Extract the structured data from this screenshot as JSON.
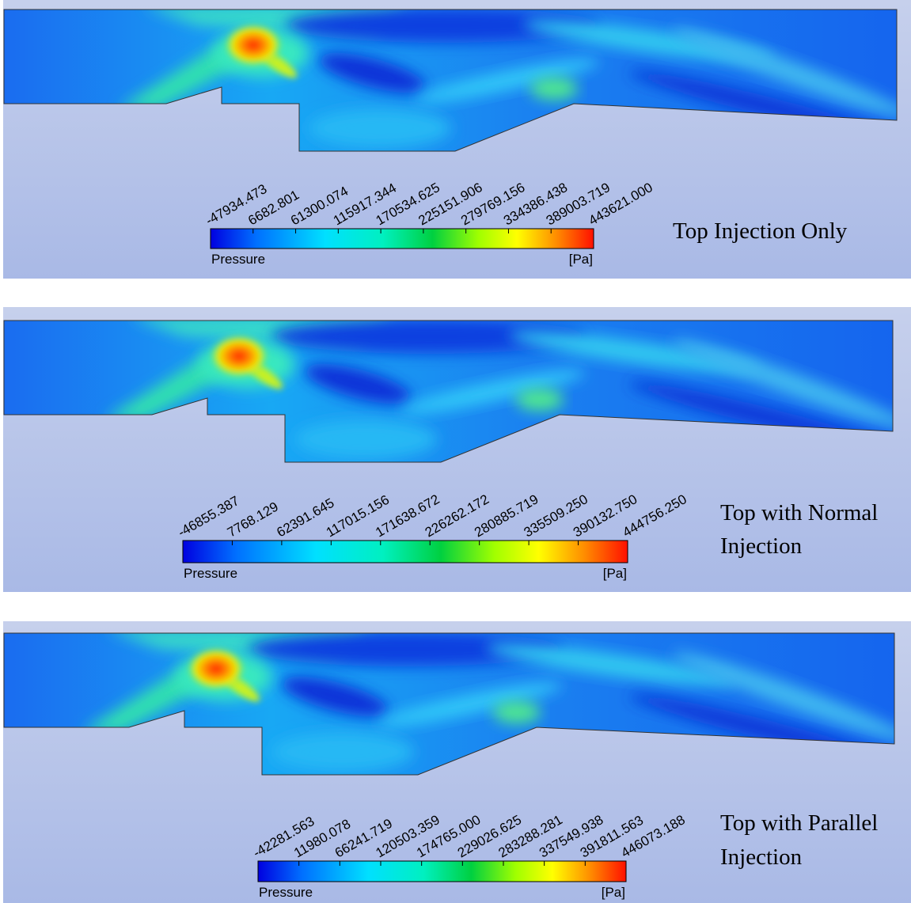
{
  "panels": [
    {
      "label_lines": [
        "Top Injection Only"
      ],
      "legend_title": "Pressure",
      "unit": "[Pa]",
      "ticks": [
        "-47934.473",
        "6682.801",
        "61300.074",
        "115917.344",
        "170534.625",
        "225151.906",
        "279769.156",
        "334386.438",
        "389003.719",
        "443621.000"
      ]
    },
    {
      "label_lines": [
        "Top with Normal",
        "Injection"
      ],
      "legend_title": "Pressure",
      "unit": "[Pa]",
      "ticks": [
        "-46855.387",
        "7768.129",
        "62391.645",
        "117015.156",
        "171638.672",
        "226262.172",
        "280885.719",
        "335509.250",
        "390132.750",
        "444756.250"
      ]
    },
    {
      "label_lines": [
        "Top with Parallel",
        "Injection"
      ],
      "legend_title": "Pressure",
      "unit": "[Pa]",
      "ticks": [
        "-42281.563",
        "11980.078",
        "66241.719",
        "120503.359",
        "174765.000",
        "229026.625",
        "283288.281",
        "337549.938",
        "391811.563",
        "446073.188"
      ]
    }
  ]
}
